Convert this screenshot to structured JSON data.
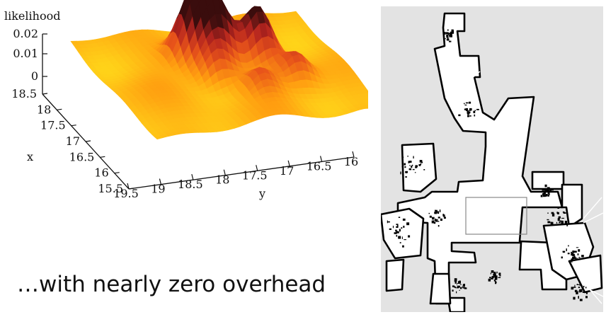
{
  "chart_data": {
    "type": "surface",
    "zlabel": "likelihood",
    "xlabel": "x",
    "ylabel": "y",
    "z_ticks": [
      "0.02",
      "0.01",
      "0"
    ],
    "x_ticks": [
      "18.5",
      "18",
      "17.5",
      "17",
      "16.5",
      "16",
      "15.5"
    ],
    "y_ticks": [
      "19.5",
      "19",
      "18.5",
      "18",
      "17.5",
      "17",
      "16.5",
      "16"
    ],
    "xlim": [
      15.5,
      18.5
    ],
    "ylim": [
      16,
      19.5
    ],
    "zlim": [
      0,
      0.02
    ],
    "colormap": [
      "#ffd81a",
      "#ff9d10",
      "#e8541a",
      "#b4241f",
      "#3a0d0d"
    ],
    "peaks": [
      {
        "x": 17.55,
        "y": 18.05,
        "z": 0.0205
      },
      {
        "x": 17.35,
        "y": 17.72,
        "z": 0.018
      },
      {
        "x": 17.25,
        "y": 17.15,
        "z": 0.017
      },
      {
        "x": 16.95,
        "y": 17.95,
        "z": 0.01
      },
      {
        "x": 16.6,
        "y": 16.85,
        "z": 0.0085
      },
      {
        "x": 16.4,
        "y": 17.5,
        "z": 0.007
      }
    ]
  },
  "caption": "…with nearly zero overhead",
  "map": {
    "background": "#e3e3e3",
    "free_color": "#ffffff",
    "wall_color": "#000000"
  }
}
